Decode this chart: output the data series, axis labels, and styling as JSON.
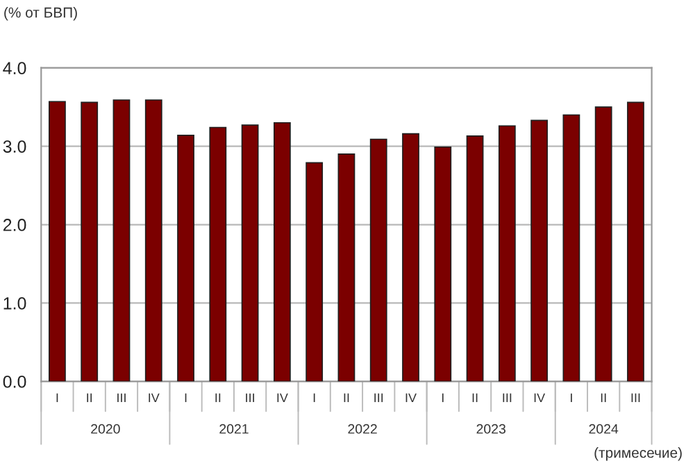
{
  "chart_data": {
    "type": "bar",
    "ylabel": "(% от БВП)",
    "xlabel": "(тримесечие)",
    "categories": [
      "I",
      "II",
      "III",
      "IV",
      "I",
      "II",
      "III",
      "IV",
      "I",
      "II",
      "III",
      "IV",
      "I",
      "II",
      "III",
      "IV",
      "I",
      "II",
      "III"
    ],
    "values": [
      3.57,
      3.56,
      3.59,
      3.59,
      3.14,
      3.24,
      3.27,
      3.3,
      2.79,
      2.9,
      3.09,
      3.16,
      2.99,
      3.13,
      3.26,
      3.33,
      3.4,
      3.5,
      3.56
    ],
    "color": "#7b0000",
    "ylim": [
      0,
      4
    ],
    "yticks": [
      {
        "value": 0,
        "label": "0.0"
      },
      {
        "value": 1,
        "label": "1.0"
      },
      {
        "value": 2,
        "label": "2.0"
      },
      {
        "value": 3,
        "label": "3.0"
      },
      {
        "value": 4,
        "label": "4.0"
      }
    ],
    "grid": "y",
    "annotations": [
      "2020",
      "2021",
      "2022",
      "2023",
      "2024"
    ]
  }
}
